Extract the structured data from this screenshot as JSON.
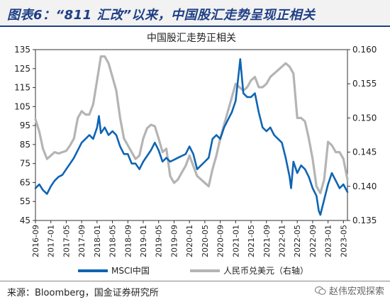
{
  "header": {
    "title": "图表6：“811 汇改”以来，中国股汇走势呈现正相关"
  },
  "footer": {
    "source": "来源：Bloomberg，国金证券研究所",
    "watermark": "赵伟宏观探索",
    "watermark_icon": "wechat-icon"
  },
  "colors": {
    "header_text": "#1f3f86",
    "msci": "#0e64b4",
    "rmb": "#b4b4b4"
  },
  "chart_data": {
    "type": "line",
    "title": "中国股汇走势正相关",
    "x_tick_labels": [
      "2016-09",
      "2017-01",
      "2017-05",
      "2017-09",
      "2018-01",
      "2018-05",
      "2018-09",
      "2019-01",
      "2019-05",
      "2019-09",
      "2020-01",
      "2020-05",
      "2020-09",
      "2021-01",
      "2021-05",
      "2021-09",
      "2022-01",
      "2022-05",
      "2022-09",
      "2023-01",
      "2023-05"
    ],
    "x_tick_values": [
      2016.667,
      2017.0,
      2017.333,
      2017.667,
      2018.0,
      2018.333,
      2018.667,
      2019.0,
      2019.333,
      2019.667,
      2020.0,
      2020.333,
      2020.667,
      2021.0,
      2021.333,
      2021.667,
      2022.0,
      2022.333,
      2022.667,
      2023.0,
      2023.333
    ],
    "xlim": [
      2016.667,
      2023.42
    ],
    "y_left": {
      "lim": [
        45,
        135
      ],
      "ticks": [
        "45",
        "55",
        "65",
        "75",
        "85",
        "95",
        "105",
        "115",
        "125",
        "135"
      ]
    },
    "y_right": {
      "lim": [
        0.135,
        0.16
      ],
      "ticks": [
        "0.135",
        "0.140",
        "0.145",
        "0.150",
        "0.155",
        "0.160"
      ]
    },
    "grid": false,
    "legend_position": "bottom",
    "series": [
      {
        "name": "MSCI中国",
        "axis": "left",
        "points": [
          [
            2016.667,
            62
          ],
          [
            2016.75,
            64
          ],
          [
            2016.83,
            61
          ],
          [
            2016.917,
            59
          ],
          [
            2017.0,
            63
          ],
          [
            2017.083,
            66
          ],
          [
            2017.167,
            68
          ],
          [
            2017.25,
            69
          ],
          [
            2017.333,
            72
          ],
          [
            2017.417,
            75
          ],
          [
            2017.5,
            78
          ],
          [
            2017.583,
            82
          ],
          [
            2017.667,
            86
          ],
          [
            2017.75,
            88
          ],
          [
            2017.833,
            90
          ],
          [
            2017.917,
            88
          ],
          [
            2018.0,
            94
          ],
          [
            2018.04,
            100
          ],
          [
            2018.083,
            91
          ],
          [
            2018.167,
            94
          ],
          [
            2018.25,
            90
          ],
          [
            2018.333,
            92
          ],
          [
            2018.417,
            90
          ],
          [
            2018.5,
            84
          ],
          [
            2018.583,
            80
          ],
          [
            2018.667,
            80
          ],
          [
            2018.75,
            75
          ],
          [
            2018.833,
            75
          ],
          [
            2018.917,
            72
          ],
          [
            2019.0,
            76
          ],
          [
            2019.083,
            79
          ],
          [
            2019.167,
            82
          ],
          [
            2019.25,
            86
          ],
          [
            2019.333,
            82
          ],
          [
            2019.417,
            76
          ],
          [
            2019.5,
            78
          ],
          [
            2019.583,
            76
          ],
          [
            2019.667,
            77
          ],
          [
            2019.75,
            78
          ],
          [
            2019.833,
            79
          ],
          [
            2019.917,
            80
          ],
          [
            2020.0,
            84
          ],
          [
            2020.083,
            80
          ],
          [
            2020.167,
            72
          ],
          [
            2020.25,
            74
          ],
          [
            2020.333,
            76
          ],
          [
            2020.417,
            78
          ],
          [
            2020.5,
            88
          ],
          [
            2020.583,
            90
          ],
          [
            2020.667,
            88
          ],
          [
            2020.75,
            94
          ],
          [
            2020.833,
            98
          ],
          [
            2020.917,
            102
          ],
          [
            2021.0,
            108
          ],
          [
            2021.083,
            126
          ],
          [
            2021.1,
            130
          ],
          [
            2021.167,
            112
          ],
          [
            2021.25,
            110
          ],
          [
            2021.333,
            110
          ],
          [
            2021.417,
            112
          ],
          [
            2021.5,
            102
          ],
          [
            2021.583,
            94
          ],
          [
            2021.667,
            92
          ],
          [
            2021.75,
            94
          ],
          [
            2021.833,
            90
          ],
          [
            2021.917,
            88
          ],
          [
            2022.0,
            86
          ],
          [
            2022.083,
            78
          ],
          [
            2022.167,
            68
          ],
          [
            2022.2,
            62
          ],
          [
            2022.25,
            76
          ],
          [
            2022.333,
            70
          ],
          [
            2022.417,
            74
          ],
          [
            2022.5,
            72
          ],
          [
            2022.583,
            68
          ],
          [
            2022.667,
            62
          ],
          [
            2022.75,
            58
          ],
          [
            2022.8,
            50
          ],
          [
            2022.833,
            48
          ],
          [
            2022.917,
            56
          ],
          [
            2023.0,
            64
          ],
          [
            2023.083,
            70
          ],
          [
            2023.167,
            66
          ],
          [
            2023.25,
            62
          ],
          [
            2023.333,
            64
          ],
          [
            2023.42,
            60
          ]
        ]
      },
      {
        "name": "人民币兑美元（右轴）",
        "axis": "right",
        "points": [
          [
            2016.667,
            0.1498
          ],
          [
            2016.75,
            0.148
          ],
          [
            2016.83,
            0.1455
          ],
          [
            2016.917,
            0.144
          ],
          [
            2017.0,
            0.1445
          ],
          [
            2017.083,
            0.145
          ],
          [
            2017.167,
            0.1448
          ],
          [
            2017.25,
            0.145
          ],
          [
            2017.333,
            0.1452
          ],
          [
            2017.417,
            0.146
          ],
          [
            2017.5,
            0.147
          ],
          [
            2017.583,
            0.15
          ],
          [
            2017.667,
            0.151
          ],
          [
            2017.75,
            0.1505
          ],
          [
            2017.833,
            0.1505
          ],
          [
            2017.917,
            0.152
          ],
          [
            2018.0,
            0.1555
          ],
          [
            2018.083,
            0.159
          ],
          [
            2018.167,
            0.159
          ],
          [
            2018.25,
            0.158
          ],
          [
            2018.333,
            0.156
          ],
          [
            2018.417,
            0.154
          ],
          [
            2018.5,
            0.15
          ],
          [
            2018.583,
            0.147
          ],
          [
            2018.667,
            0.146
          ],
          [
            2018.75,
            0.145
          ],
          [
            2018.833,
            0.144
          ],
          [
            2018.917,
            0.1445
          ],
          [
            2019.0,
            0.147
          ],
          [
            2019.083,
            0.1485
          ],
          [
            2019.167,
            0.149
          ],
          [
            2019.25,
            0.1488
          ],
          [
            2019.333,
            0.147
          ],
          [
            2019.417,
            0.145
          ],
          [
            2019.5,
            0.1455
          ],
          [
            2019.583,
            0.1415
          ],
          [
            2019.667,
            0.1405
          ],
          [
            2019.75,
            0.141
          ],
          [
            2019.833,
            0.142
          ],
          [
            2019.917,
            0.143
          ],
          [
            2020.0,
            0.1445
          ],
          [
            2020.083,
            0.143
          ],
          [
            2020.167,
            0.1415
          ],
          [
            2020.25,
            0.141
          ],
          [
            2020.333,
            0.1405
          ],
          [
            2020.417,
            0.14
          ],
          [
            2020.5,
            0.1425
          ],
          [
            2020.583,
            0.1445
          ],
          [
            2020.667,
            0.147
          ],
          [
            2020.75,
            0.149
          ],
          [
            2020.833,
            0.151
          ],
          [
            2020.917,
            0.153
          ],
          [
            2021.0,
            0.155
          ],
          [
            2021.083,
            0.1545
          ],
          [
            2021.167,
            0.154
          ],
          [
            2021.25,
            0.1545
          ],
          [
            2021.333,
            0.1555
          ],
          [
            2021.417,
            0.156
          ],
          [
            2021.5,
            0.1545
          ],
          [
            2021.583,
            0.1545
          ],
          [
            2021.667,
            0.155
          ],
          [
            2021.75,
            0.156
          ],
          [
            2021.833,
            0.1565
          ],
          [
            2021.917,
            0.157
          ],
          [
            2022.0,
            0.1575
          ],
          [
            2022.083,
            0.158
          ],
          [
            2022.167,
            0.1575
          ],
          [
            2022.25,
            0.1565
          ],
          [
            2022.333,
            0.15
          ],
          [
            2022.417,
            0.15
          ],
          [
            2022.5,
            0.1495
          ],
          [
            2022.583,
            0.147
          ],
          [
            2022.667,
            0.144
          ],
          [
            2022.75,
            0.14
          ],
          [
            2022.833,
            0.139
          ],
          [
            2022.917,
            0.141
          ],
          [
            2023.0,
            0.1465
          ],
          [
            2023.083,
            0.146
          ],
          [
            2023.167,
            0.145
          ],
          [
            2023.25,
            0.145
          ],
          [
            2023.333,
            0.144
          ],
          [
            2023.42,
            0.141
          ]
        ]
      }
    ]
  }
}
